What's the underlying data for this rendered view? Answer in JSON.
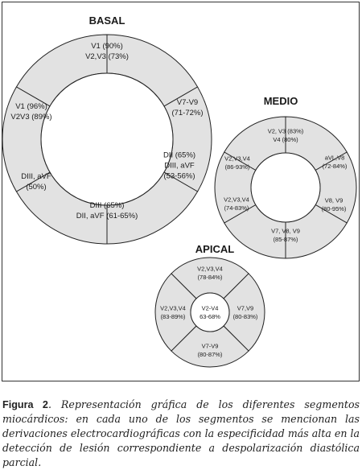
{
  "caption": {
    "figure_label": "Figura 2",
    "text": ". Representación gráfica de los diferentes segmentos miocárdicos: en cada uno de los segmentos se mencionan las derivaciones electrocardiográficas con la especificidad más alta en la detección de lesión correspondiente a despolarización diastólica parcial."
  },
  "rings": [
    {
      "title": "BASAL",
      "segments": [
        {
          "lines": [
            "V1 (90%)",
            "V2,V3 (73%)"
          ]
        },
        {
          "lines": [
            "V7-V9",
            "(71-72%)"
          ]
        },
        {
          "lines": [
            "DII (65%)",
            "DIII, aVF",
            "(53-56%)"
          ]
        },
        {
          "lines": [
            "DIII (65%)",
            "DII, aVF (61-65%)"
          ]
        },
        {
          "lines": [
            "DIII, aVF",
            "(50%)"
          ]
        },
        {
          "lines": [
            "V1 (96%)",
            "V2V3 (89%)"
          ]
        }
      ]
    },
    {
      "title": "MEDIO",
      "segments": [
        {
          "lines": [
            "V2, V3 (83%)",
            "V4 (80%)"
          ]
        },
        {
          "lines": [
            "aVL,V8",
            "(72-84%)"
          ]
        },
        {
          "lines": [
            "V8, V9",
            "(80-95%)"
          ]
        },
        {
          "lines": [
            "V7, V8, V9",
            "(85-87%)"
          ]
        },
        {
          "lines": [
            "V2,V3,V4",
            "(74-83%)"
          ]
        },
        {
          "lines": [
            "V2,V3,V4",
            "(86-93%)"
          ]
        }
      ]
    },
    {
      "title": "APICAL",
      "center": {
        "lines": [
          "V2-V4",
          "63-68%"
        ]
      },
      "segments": [
        {
          "lines": [
            "V2,V3,V4",
            "(78-84%)"
          ]
        },
        {
          "lines": [
            "V7,V9",
            "(80-83%)"
          ]
        },
        {
          "lines": [
            "V7-V9",
            "(80-87%)"
          ]
        },
        {
          "lines": [
            "V2,V3,V4",
            "(83-89%)"
          ]
        }
      ]
    }
  ]
}
